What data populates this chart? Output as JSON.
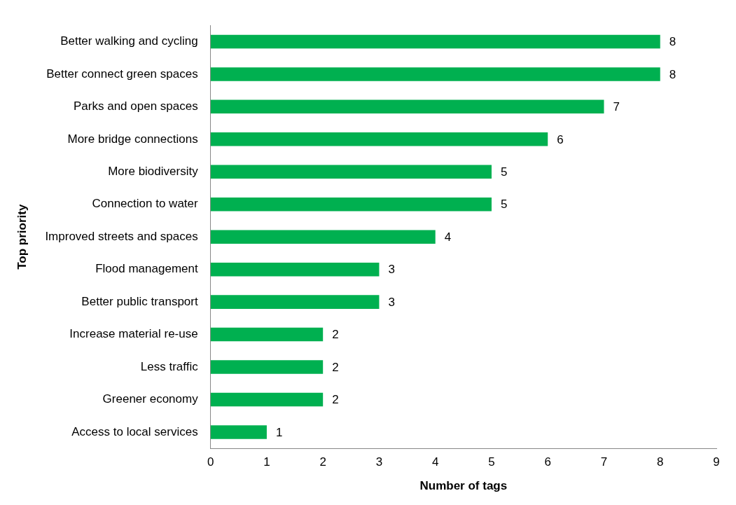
{
  "chart_data": {
    "type": "bar",
    "orientation": "horizontal",
    "xlabel": "Number of tags",
    "ylabel": "Top priority",
    "categories": [
      "Better walking and cycling",
      "Better connect green spaces",
      "Parks and open spaces",
      "More bridge connections",
      "More biodiversity",
      "Connection to water",
      "Improved streets and spaces",
      "Flood management",
      "Better public transport",
      "Increase material re-use",
      "Less traffic",
      "Greener economy",
      "Access to local services"
    ],
    "values": [
      8,
      8,
      7,
      6,
      5,
      5,
      4,
      3,
      3,
      2,
      2,
      2,
      1
    ],
    "color": "#00b050",
    "xlim": [
      0,
      9
    ],
    "xticks": [
      0,
      1,
      2,
      3,
      4,
      5,
      6,
      7,
      8,
      9
    ],
    "grid": false,
    "legend": false,
    "data_labels": true
  }
}
